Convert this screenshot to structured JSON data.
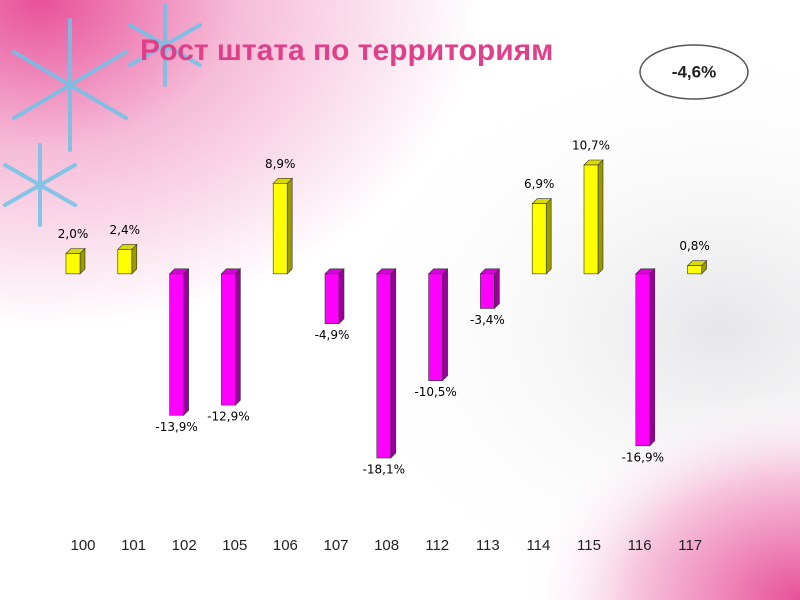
{
  "chart_data": {
    "type": "bar",
    "title": "Рост штата по территориям",
    "annotation": "-4,6%",
    "categories": [
      "100",
      "101",
      "102",
      "105",
      "106",
      "107",
      "108",
      "112",
      "113",
      "114",
      "115",
      "116",
      "117"
    ],
    "values": [
      2.0,
      2.4,
      -13.9,
      -12.9,
      8.9,
      -4.9,
      -18.1,
      -10.5,
      -3.4,
      6.9,
      10.7,
      -16.9,
      0.8
    ],
    "value_labels": [
      "2,0%",
      "2,4%",
      "-13,9%",
      "-12,9%",
      "8,9%",
      "-4,9%",
      "-18,1%",
      "-10,5%",
      "-3,4%",
      "6,9%",
      "10,7%",
      "-16,9%",
      "0,8%"
    ],
    "positive_color": "#ffff00",
    "negative_color": "#ff00ff",
    "grid": false
  }
}
